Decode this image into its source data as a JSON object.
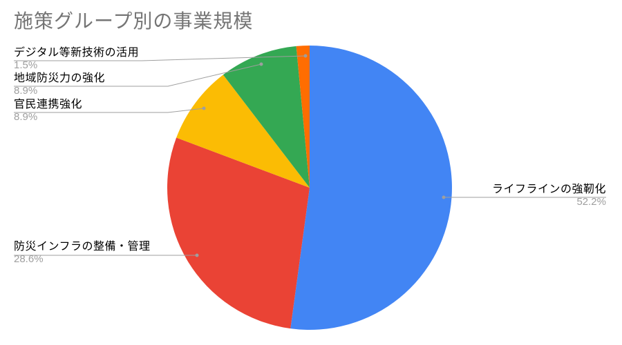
{
  "chart_data": {
    "type": "pie",
    "title": "施策グループ別の事業規模",
    "legend": "none",
    "start_angle_deg": 0,
    "direction": "clockwise",
    "labels_position": "outside-with-leader-lines",
    "slices": [
      {
        "key": "lifeline",
        "label": "ライフラインの強靭化",
        "value": 52.2,
        "pct_label": "52.2%",
        "color": "#4285F4"
      },
      {
        "key": "infrastructure",
        "label": "防災インフラの整備・管理",
        "value": 28.6,
        "pct_label": "28.6%",
        "color": "#EA4335"
      },
      {
        "key": "public-private",
        "label": "官民連携強化",
        "value": 8.9,
        "pct_label": "8.9%",
        "color": "#FBBC04"
      },
      {
        "key": "regional",
        "label": "地域防災力の強化",
        "value": 8.9,
        "pct_label": "8.9%",
        "color": "#34A853"
      },
      {
        "key": "digital-tech",
        "label": "デジタル等新技術の活用",
        "value": 1.5,
        "pct_label": "1.5%",
        "color": "#FF6D01"
      }
    ],
    "colors": {
      "title_text": "#757575",
      "label_text": "#000000",
      "percent_text": "#9e9e9e",
      "leader_line": "#9e9e9e",
      "background": "#ffffff"
    }
  }
}
